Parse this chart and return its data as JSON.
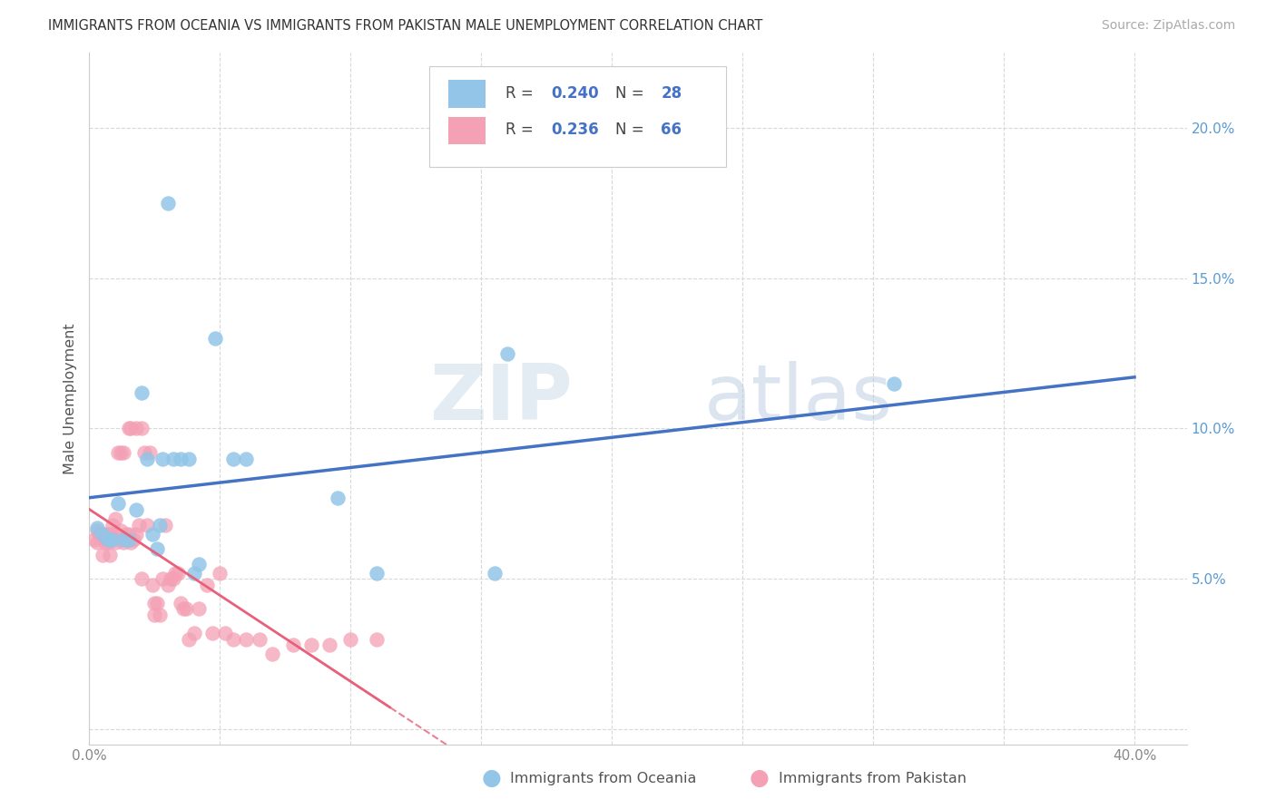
{
  "title": "IMMIGRANTS FROM OCEANIA VS IMMIGRANTS FROM PAKISTAN MALE UNEMPLOYMENT CORRELATION CHART",
  "source": "Source: ZipAtlas.com",
  "ylabel": "Male Unemployment",
  "xlim": [
    0.0,
    0.42
  ],
  "ylim": [
    -0.005,
    0.225
  ],
  "xticks": [
    0.0,
    0.05,
    0.1,
    0.15,
    0.2,
    0.25,
    0.3,
    0.35,
    0.4
  ],
  "yticks": [
    0.0,
    0.05,
    0.1,
    0.15,
    0.2
  ],
  "background_color": "#ffffff",
  "grid_color": "#d8d8d8",
  "watermark_zip": "ZIP",
  "watermark_atlas": "atlas",
  "legend_r1": "0.240",
  "legend_n1": "28",
  "legend_r2": "0.236",
  "legend_n2": "66",
  "legend_label1": "Immigrants from Oceania",
  "legend_label2": "Immigrants from Pakistan",
  "color_oceania": "#92C5E8",
  "color_pakistan": "#F4A0B5",
  "color_line_oceania": "#4472C4",
  "color_line_pakistan": "#E8607A",
  "oceania_x": [
    0.003,
    0.005,
    0.007,
    0.009,
    0.011,
    0.013,
    0.015,
    0.018,
    0.02,
    0.022,
    0.024,
    0.026,
    0.027,
    0.028,
    0.03,
    0.032,
    0.035,
    0.038,
    0.04,
    0.042,
    0.048,
    0.055,
    0.06,
    0.095,
    0.11,
    0.155,
    0.16,
    0.308
  ],
  "oceania_y": [
    0.067,
    0.065,
    0.063,
    0.063,
    0.075,
    0.063,
    0.063,
    0.073,
    0.112,
    0.09,
    0.065,
    0.06,
    0.068,
    0.09,
    0.175,
    0.09,
    0.09,
    0.09,
    0.052,
    0.055,
    0.13,
    0.09,
    0.09,
    0.077,
    0.052,
    0.052,
    0.125,
    0.115
  ],
  "pakistan_x": [
    0.002,
    0.003,
    0.003,
    0.004,
    0.005,
    0.005,
    0.006,
    0.006,
    0.007,
    0.007,
    0.008,
    0.008,
    0.009,
    0.009,
    0.01,
    0.01,
    0.011,
    0.012,
    0.012,
    0.013,
    0.013,
    0.014,
    0.015,
    0.015,
    0.016,
    0.016,
    0.017,
    0.018,
    0.018,
    0.019,
    0.02,
    0.02,
    0.021,
    0.022,
    0.023,
    0.024,
    0.025,
    0.025,
    0.026,
    0.027,
    0.028,
    0.029,
    0.03,
    0.031,
    0.032,
    0.033,
    0.034,
    0.035,
    0.036,
    0.037,
    0.038,
    0.04,
    0.042,
    0.045,
    0.047,
    0.05,
    0.052,
    0.055,
    0.06,
    0.065,
    0.07,
    0.078,
    0.085,
    0.092,
    0.1,
    0.11
  ],
  "pakistan_y": [
    0.063,
    0.062,
    0.066,
    0.065,
    0.065,
    0.058,
    0.065,
    0.062,
    0.065,
    0.062,
    0.065,
    0.058,
    0.065,
    0.068,
    0.062,
    0.07,
    0.092,
    0.066,
    0.092,
    0.092,
    0.062,
    0.065,
    0.065,
    0.1,
    0.1,
    0.062,
    0.063,
    0.065,
    0.1,
    0.068,
    0.1,
    0.05,
    0.092,
    0.068,
    0.092,
    0.048,
    0.042,
    0.038,
    0.042,
    0.038,
    0.05,
    0.068,
    0.048,
    0.05,
    0.05,
    0.052,
    0.052,
    0.042,
    0.04,
    0.04,
    0.03,
    0.032,
    0.04,
    0.048,
    0.032,
    0.052,
    0.032,
    0.03,
    0.03,
    0.03,
    0.025,
    0.028,
    0.028,
    0.028,
    0.03,
    0.03
  ]
}
